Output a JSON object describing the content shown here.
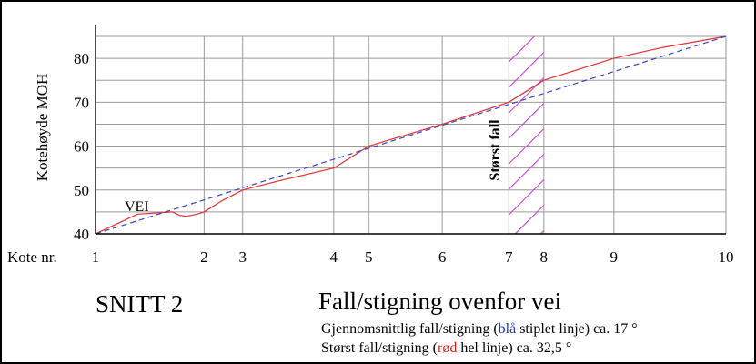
{
  "chart_data": {
    "type": "line",
    "title": "SNITT 2",
    "subtitle": "Fall/stigning ovenfor vei",
    "ylabel": "Kotehøyde MOH",
    "xlabel": "Kote nr.",
    "ylim": [
      40,
      85
    ],
    "yticks": [
      40,
      50,
      60,
      70,
      80
    ],
    "x_ticks": [
      {
        "label": "1",
        "x": 0.0
      },
      {
        "label": "2",
        "x": 1.55
      },
      {
        "label": "3",
        "x": 2.1
      },
      {
        "label": "4",
        "x": 3.4
      },
      {
        "label": "5",
        "x": 3.9
      },
      {
        "label": "6",
        "x": 4.95
      },
      {
        "label": "7",
        "x": 5.9
      },
      {
        "label": "8",
        "x": 6.4
      },
      {
        "label": "9",
        "x": 7.4
      },
      {
        "label": "10",
        "x": 9.0
      }
    ],
    "series": [
      {
        "style": "solid",
        "color": "#e23030",
        "points": [
          [
            0,
            40
          ],
          [
            0.6,
            44.5
          ],
          [
            1.1,
            45
          ],
          [
            1.2,
            44.2
          ],
          [
            1.3,
            44
          ],
          [
            1.45,
            44.5
          ],
          [
            1.55,
            45
          ],
          [
            1.8,
            47.5
          ],
          [
            2.1,
            50
          ],
          [
            2.6,
            52
          ],
          [
            3.4,
            55
          ],
          [
            3.9,
            60
          ],
          [
            4.95,
            65
          ],
          [
            5.9,
            70
          ],
          [
            6.4,
            75
          ],
          [
            7.4,
            80
          ],
          [
            8.1,
            82.5
          ],
          [
            9.0,
            85
          ]
        ]
      },
      {
        "style": "dashed",
        "color": "#3344cc",
        "points": [
          [
            0,
            40
          ],
          [
            9.0,
            85
          ]
        ]
      }
    ],
    "annotations": {
      "road_label": "VEI",
      "steepest_label": "Størst fall",
      "steepest_range": [
        5.9,
        6.4
      ]
    },
    "legend_lines": [
      {
        "before": "Gjennomsnittlig fall/stigning (",
        "highlight": "blå",
        "highlight_color": "#1a2fd6",
        "after": " stiplet linje) ca. 17 °"
      },
      {
        "before": "Størst fall/stigning (",
        "highlight": "rød",
        "highlight_color": "#e01b1b",
        "after": " hel linje) ca. 32,5 °"
      }
    ],
    "grid": true,
    "colors": {
      "grid": "#9a9a9a",
      "hatch": "#d04ad0",
      "axis": "#000000"
    }
  }
}
